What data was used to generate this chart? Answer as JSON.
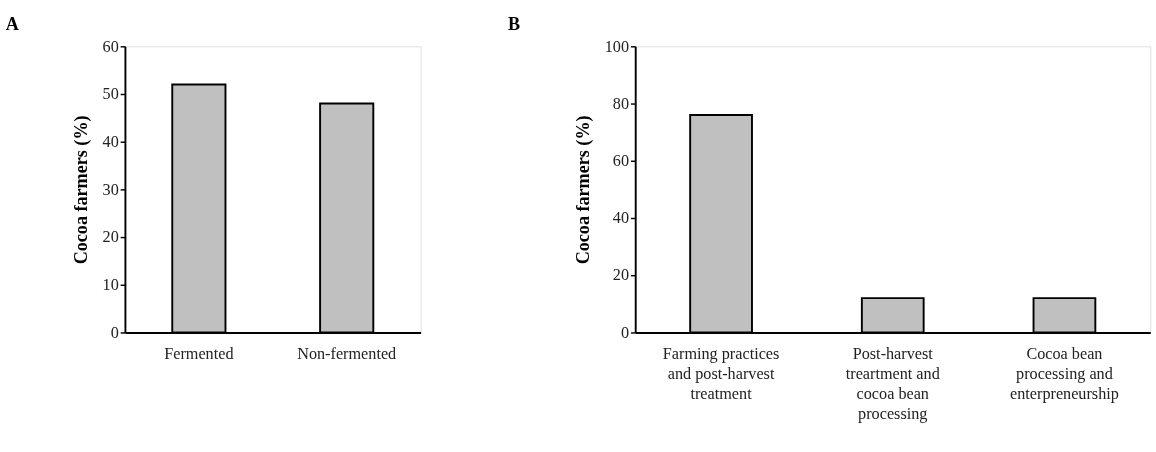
{
  "chart_data": [
    {
      "type": "bar",
      "title": "A",
      "categories": [
        "Fermented",
        "Non-fermented"
      ],
      "values": [
        52,
        48
      ],
      "color": "#c0c0c0",
      "ylabel": "Cocoa farmers (%)",
      "ylim": [
        0,
        60
      ],
      "yticks": [
        0,
        10,
        20,
        30,
        40,
        50,
        60
      ]
    },
    {
      "type": "bar",
      "title": "B",
      "categories": [
        "Farming practices and post-harvest treatment",
        "Post-harvest treartment and cocoa bean processing",
        "Cocoa bean processing and enterpreneurship"
      ],
      "values": [
        76,
        12,
        12
      ],
      "color": "#c0c0c0",
      "ylabel": "Cocoa farmers (%)",
      "ylim": [
        0,
        100
      ],
      "yticks": [
        0,
        20,
        40,
        60,
        80,
        100
      ]
    }
  ]
}
